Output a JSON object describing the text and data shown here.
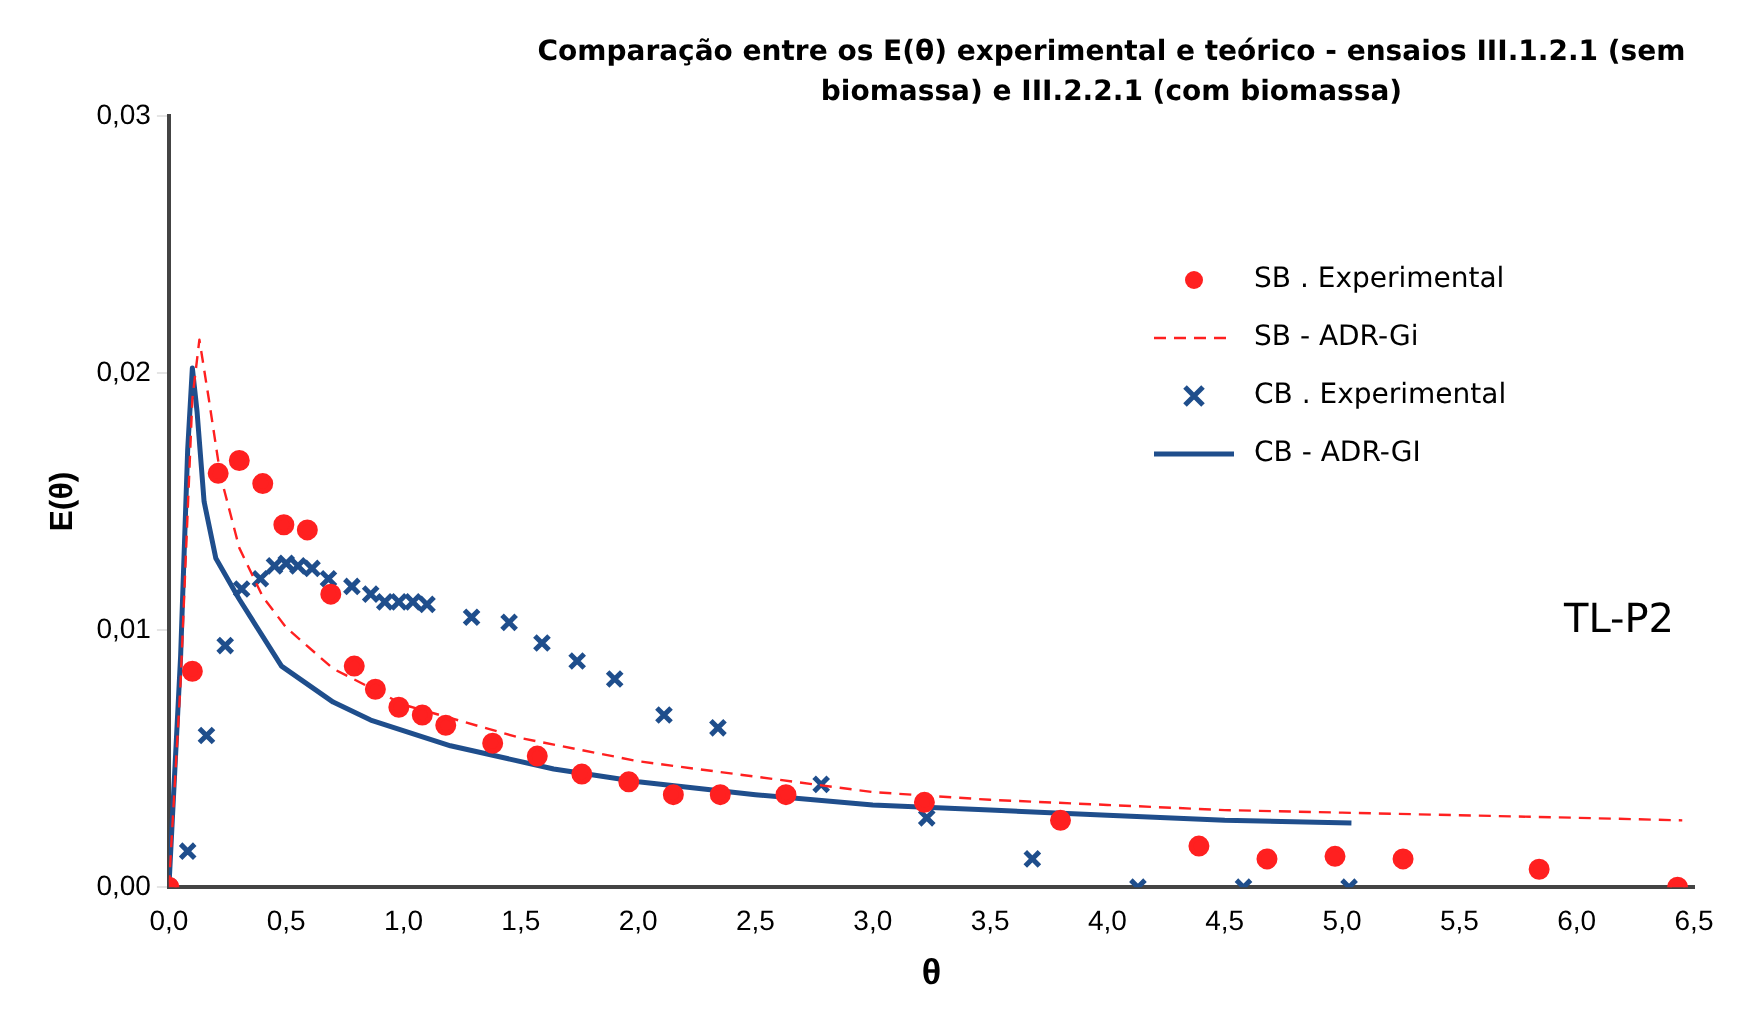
{
  "chart_data": {
    "type": "scatter",
    "title": "Comparação entre os E(θ) experimental e teórico - ensaios III.1.2.1 (sem biomassa) e III.2.2.1 (com biomassa)",
    "xlabel": "θ",
    "ylabel": "E(θ)",
    "annotations": [
      "TL-P2"
    ],
    "legend": "top right",
    "grid": false,
    "xlim": [
      0,
      6.5
    ],
    "xticks": [
      {
        "value": 0,
        "label": "0,0"
      },
      {
        "value": 0.5,
        "label": "0,5"
      },
      {
        "value": 1,
        "label": "1,0"
      },
      {
        "value": 1.5,
        "label": "1,5"
      },
      {
        "value": 2,
        "label": "2,0"
      },
      {
        "value": 2.5,
        "label": "2,5"
      },
      {
        "value": 3,
        "label": "3,0"
      },
      {
        "value": 3.5,
        "label": "3,5"
      },
      {
        "value": 4,
        "label": "4,0"
      },
      {
        "value": 4.5,
        "label": "4,5"
      },
      {
        "value": 5,
        "label": "5,0"
      },
      {
        "value": 5.5,
        "label": "5,5"
      },
      {
        "value": 6,
        "label": "6,0"
      },
      {
        "value": 6.5,
        "label": "6,5"
      }
    ],
    "ylim": [
      0,
      0.03
    ],
    "yticks": [
      {
        "value": 0,
        "label": "0,00"
      },
      {
        "value": 0.01,
        "label": "0,01"
      },
      {
        "value": 0.02,
        "label": "0,02"
      },
      {
        "value": 0.03,
        "label": "0,03"
      }
    ],
    "series": [
      {
        "name": "SB . Experimental",
        "type": "scatter",
        "marker": "circle",
        "color": "#ff2020",
        "x": [
          0,
          0.1,
          0.21,
          0.3,
          0.4,
          0.49,
          0.59,
          0.69,
          0.79,
          0.88,
          0.98,
          1.08,
          1.18,
          1.38,
          1.57,
          1.76,
          1.96,
          2.15,
          2.35,
          2.63,
          3.22,
          3.8,
          4.39,
          4.68,
          4.97,
          5.26,
          5.84,
          6.43
        ],
        "values": [
          0,
          0.0084,
          0.0161,
          0.0166,
          0.0157,
          0.0141,
          0.0139,
          0.0114,
          0.0086,
          0.0077,
          0.007,
          0.0067,
          0.0063,
          0.0056,
          0.0051,
          0.0044,
          0.0041,
          0.0036,
          0.0036,
          0.0036,
          0.0033,
          0.0026,
          0.0016,
          0.0011,
          0.0012,
          0.0011,
          0.0007,
          0
        ]
      },
      {
        "name": "SB - ADR-Gi",
        "type": "line",
        "marker": "none",
        "line_style": "dashed",
        "color": "#ff2020",
        "x": [
          0,
          0.05,
          0.1,
          0.13,
          0.17,
          0.22,
          0.3,
          0.4,
          0.5,
          0.7,
          1,
          1.5,
          2,
          2.5,
          3,
          3.5,
          4,
          4.5,
          5,
          5.5,
          6,
          6.45
        ],
        "values": [
          0,
          0.008,
          0.019,
          0.0213,
          0.019,
          0.016,
          0.0132,
          0.0113,
          0.0101,
          0.0085,
          0.0071,
          0.0058,
          0.0049,
          0.0043,
          0.0037,
          0.0034,
          0.0032,
          0.003,
          0.0029,
          0.0028,
          0.0027,
          0.0026
        ]
      },
      {
        "name": "CB . Experimental",
        "type": "scatter",
        "marker": "cross",
        "color": "#1f4e8c",
        "x": [
          0,
          0.08,
          0.16,
          0.24,
          0.31,
          0.39,
          0.45,
          0.5,
          0.55,
          0.61,
          0.68,
          0.78,
          0.86,
          0.92,
          0.98,
          1.04,
          1.1,
          1.29,
          1.45,
          1.59,
          1.74,
          1.9,
          2.11,
          2.34,
          2.78,
          3.23,
          3.68,
          4.13,
          4.58,
          5.03
        ],
        "values": [
          0,
          0.0014,
          0.0059,
          0.0094,
          0.0116,
          0.012,
          0.0125,
          0.0126,
          0.0125,
          0.0124,
          0.012,
          0.0117,
          0.0114,
          0.0111,
          0.0111,
          0.0111,
          0.011,
          0.0105,
          0.0103,
          0.0095,
          0.0088,
          0.0081,
          0.0067,
          0.0062,
          0.004,
          0.0027,
          0.0011,
          0,
          0,
          0
        ]
      },
      {
        "name": "CB - ADR-GI",
        "type": "line",
        "marker": "none",
        "line_style": "solid",
        "color": "#1f4e8c",
        "x": [
          0,
          0.05,
          0.08,
          0.1,
          0.12,
          0.15,
          0.2,
          0.3,
          0.48,
          0.7,
          0.86,
          1.2,
          1.64,
          2,
          2.5,
          3,
          3.5,
          4,
          4.5,
          5.04
        ],
        "values": [
          0,
          0.009,
          0.017,
          0.0202,
          0.0185,
          0.015,
          0.0128,
          0.0112,
          0.0086,
          0.0072,
          0.0065,
          0.0055,
          0.0046,
          0.0041,
          0.0036,
          0.0032,
          0.003,
          0.0028,
          0.0026,
          0.0025
        ]
      }
    ]
  }
}
